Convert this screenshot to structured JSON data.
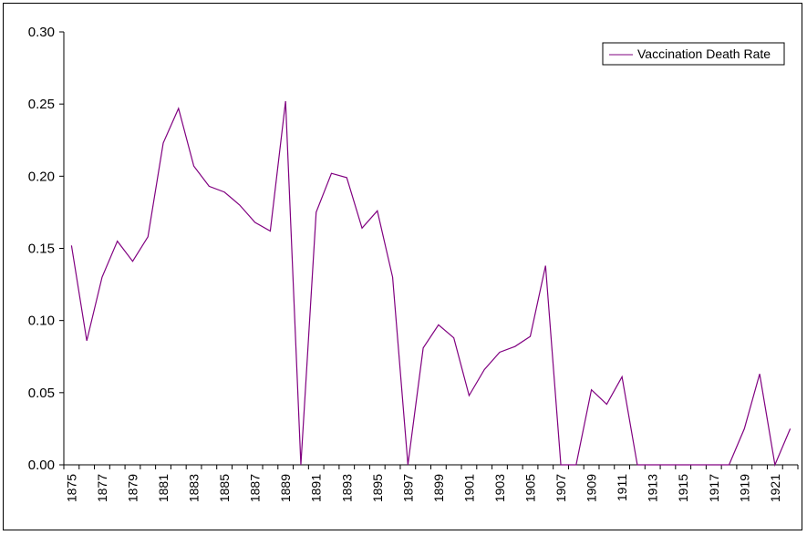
{
  "chart_data": {
    "type": "line",
    "title": "",
    "xlabel": "",
    "ylabel": "",
    "ylim": [
      0,
      0.3
    ],
    "y_ticks": [
      "0.00",
      "0.05",
      "0.10",
      "0.15",
      "0.20",
      "0.25",
      "0.30"
    ],
    "x": [
      1875,
      1876,
      1877,
      1878,
      1879,
      1880,
      1881,
      1882,
      1883,
      1884,
      1885,
      1886,
      1887,
      1888,
      1889,
      1890,
      1891,
      1892,
      1893,
      1894,
      1895,
      1896,
      1897,
      1898,
      1899,
      1900,
      1901,
      1902,
      1903,
      1904,
      1905,
      1906,
      1907,
      1908,
      1909,
      1910,
      1911,
      1912,
      1913,
      1914,
      1915,
      1916,
      1917,
      1918,
      1919,
      1920,
      1921,
      1922
    ],
    "x_tick_labels": [
      "1875",
      "1877",
      "1879",
      "1881",
      "1883",
      "1885",
      "1887",
      "1889",
      "1891",
      "1893",
      "1895",
      "1897",
      "1899",
      "1901",
      "1903",
      "1905",
      "1907",
      "1909",
      "1911",
      "1913",
      "1915",
      "1917",
      "1919",
      "1921"
    ],
    "series": [
      {
        "name": "Vaccination Death Rate",
        "color": "#800080",
        "values": [
          0.152,
          0.086,
          0.13,
          0.155,
          0.141,
          0.158,
          0.223,
          0.247,
          0.207,
          0.193,
          0.189,
          0.18,
          0.168,
          0.162,
          0.252,
          0.0,
          0.175,
          0.202,
          0.199,
          0.164,
          0.176,
          0.13,
          0.0,
          0.081,
          0.097,
          0.088,
          0.048,
          0.066,
          0.078,
          0.082,
          0.089,
          0.138,
          0.0,
          0.0,
          0.052,
          0.042,
          0.061,
          0.0,
          0.0,
          0.0,
          0.0,
          0.0,
          0.0,
          0.0,
          0.025,
          0.063,
          0.0,
          0.025
        ]
      }
    ],
    "legend": {
      "position": "top-right",
      "label": "Vaccination Death Rate"
    },
    "grid": false
  }
}
